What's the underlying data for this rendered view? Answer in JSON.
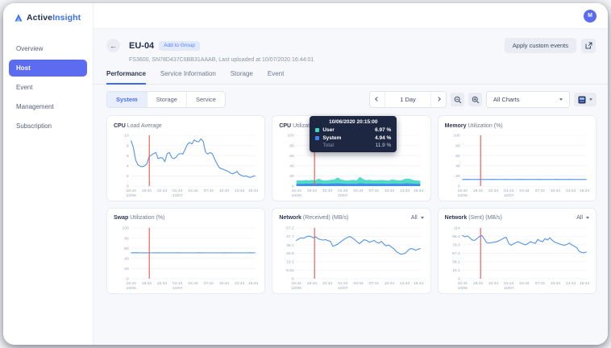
{
  "brand": {
    "name_a": "Active",
    "name_b": "Insight"
  },
  "topbar": {
    "avatar": "M"
  },
  "icons": {
    "back": "←"
  },
  "sidebar": {
    "items": [
      {
        "label": "Overview",
        "active": false
      },
      {
        "label": "Host",
        "active": true
      },
      {
        "label": "Event",
        "active": false
      },
      {
        "label": "Management",
        "active": false
      },
      {
        "label": "Subscription",
        "active": false
      }
    ]
  },
  "header": {
    "title": "EU-04",
    "chip": "Add to Group",
    "subtitle": "FS3600, SN78D437C6BB31AAAB, Last uploaded at 10/07/2020 16:44:01",
    "apply_button": "Apply custom events"
  },
  "tabs": [
    {
      "label": "Performance",
      "active": true
    },
    {
      "label": "Service Information",
      "active": false
    },
    {
      "label": "Storage",
      "active": false
    },
    {
      "label": "Event",
      "active": false
    }
  ],
  "subtabs": [
    {
      "label": "System",
      "active": true
    },
    {
      "label": "Storage",
      "active": false
    },
    {
      "label": "Service",
      "active": false
    }
  ],
  "controls": {
    "range": "1 Day",
    "charts_filter": "All Charts"
  },
  "colors": {
    "accent": "#4c6ef5",
    "sidebar_active": "#5b6cf0",
    "line_blue": "#4f92e8",
    "marker_red": "#ef5350",
    "teal": "#3ed6c0",
    "grid": "#edf0f5",
    "tooltip_bg": "#1d2742"
  },
  "tooltip": {
    "title": "10/06/2020 20:15:00",
    "rows": [
      {
        "label": "User",
        "value": "6.97 %",
        "color": "#3ed6c0"
      },
      {
        "label": "System",
        "value": "4.94 %",
        "color": "#3b82f6"
      },
      {
        "label": "Total",
        "value": "11.9 %",
        "color": null
      }
    ]
  },
  "chart_data": [
    {
      "type": "line",
      "title_strong": "CPU",
      "title_rest": "Load Average",
      "ylim": [
        0,
        10
      ],
      "yticks": [
        0,
        2,
        4,
        6,
        8,
        10
      ],
      "xticks": [
        [
          "16:44",
          "10/06"
        ],
        [
          "19:44"
        ],
        [
          "22:44"
        ],
        [
          "01:44",
          "10/07"
        ],
        [
          "04:44"
        ],
        [
          "07:44"
        ],
        [
          "10:44"
        ],
        [
          "13:44"
        ],
        [
          "16:44"
        ]
      ],
      "marker_x": 0.1465,
      "dropdown": null,
      "series": [
        {
          "name": "Load",
          "color": "#4f92e8",
          "values": [
            8.9,
            7.6,
            5.1,
            4.2,
            3.9,
            3.8,
            4.0,
            4.4,
            5.8,
            6.1,
            6.4,
            6.6,
            5.4,
            5.6,
            5.5,
            4.8,
            6.4,
            6.6,
            5.6,
            5.4,
            5.7,
            6.3,
            6.4,
            6.3,
            7.3,
            8.2,
            8.6,
            8.3,
            9.1,
            8.8,
            8.7,
            9.3,
            8.8,
            6.7,
            6.3,
            6.6,
            6.4,
            5.4,
            4.5,
            3.7,
            3.4,
            3.3,
            3.1,
            2.9,
            2.6,
            2.4,
            2.6,
            2.9,
            2.3,
            2.1,
            1.9,
            2.0,
            1.8,
            1.7,
            1.9,
            2.0
          ]
        }
      ]
    },
    {
      "type": "stacked_area",
      "title_strong": "CPU",
      "title_rest": "Utilization (%)",
      "ylim": [
        0,
        100
      ],
      "yticks": [
        0,
        20,
        40,
        60,
        80,
        100
      ],
      "xticks": [
        [
          "16:44",
          "10/06"
        ],
        [
          "19:44"
        ],
        [
          "22:44"
        ],
        [
          "01:44",
          "10/07"
        ],
        [
          "04:44"
        ],
        [
          "07:44"
        ],
        [
          "10:44"
        ],
        [
          "13:44"
        ],
        [
          "16:44"
        ]
      ],
      "marker_x": 0.1465,
      "dropdown": null,
      "series": [
        {
          "name": "User",
          "color": "#3ed6c0",
          "values": [
            6.5,
            7.0,
            6.6,
            7.1,
            6.8,
            7.3,
            7.0,
            9.5,
            7.2,
            6.6,
            7.1,
            7.6,
            8.1,
            11.5,
            8.0,
            7.0,
            6.6,
            7.1,
            7.3,
            6.9,
            12.5,
            8.8,
            7.1,
            7.6,
            7.0,
            6.9,
            7.1,
            7.3,
            7.0,
            6.6,
            7.9,
            7.4,
            7.0,
            6.9,
            8.8,
            9.6,
            8.7,
            7.1,
            6.6,
            6.3
          ]
        },
        {
          "name": "System",
          "color": "#3b82f6",
          "values": [
            4.3,
            4.6,
            4.4,
            4.7,
            4.5,
            4.8,
            4.6,
            5.2,
            4.7,
            4.4,
            4.6,
            4.9,
            5.1,
            5.6,
            5.0,
            4.7,
            4.4,
            4.6,
            4.7,
            4.5,
            5.7,
            5.1,
            4.6,
            4.9,
            4.6,
            4.5,
            4.6,
            4.7,
            4.6,
            4.4,
            5.0,
            4.8,
            4.6,
            4.5,
            5.1,
            5.3,
            5.0,
            4.6,
            4.4,
            4.2
          ]
        }
      ]
    },
    {
      "type": "line",
      "title_strong": "Memory",
      "title_rest": "Utilization (%)",
      "ylim": [
        0,
        100
      ],
      "yticks": [
        0,
        20,
        40,
        60,
        80,
        100
      ],
      "xticks": [
        [
          "16:44",
          "10/06"
        ],
        [
          "19:44"
        ],
        [
          "22:44"
        ],
        [
          "01:44",
          "10/07"
        ],
        [
          "04:44"
        ],
        [
          "07:44"
        ],
        [
          "10:44"
        ],
        [
          "13:44"
        ],
        [
          "16:44"
        ]
      ],
      "marker_x": 0.1465,
      "dropdown": null,
      "series": [
        {
          "name": "Memory",
          "color": "#4f92e8",
          "values": [
            13,
            13.1,
            12.9,
            13,
            13.2,
            13,
            12.9,
            13.1,
            13,
            13,
            13.1,
            12.9,
            13,
            13,
            13.1,
            13,
            12.9,
            13,
            13.1,
            13,
            13,
            12.9,
            13.1,
            13,
            13,
            13.1,
            13,
            12.9,
            13,
            13
          ]
        }
      ]
    },
    {
      "type": "line",
      "title_strong": "Swap",
      "title_rest": "Utilization (%)",
      "ylim": [
        0,
        100
      ],
      "yticks": [
        0,
        20,
        40,
        60,
        80,
        100
      ],
      "xticks": [
        [
          "16:44",
          "10/06"
        ],
        [
          "19:44"
        ],
        [
          "22:44"
        ],
        [
          "01:44",
          "10/07"
        ],
        [
          "04:44"
        ],
        [
          "07:44"
        ],
        [
          "10:44"
        ],
        [
          "13:44"
        ],
        [
          "16:44"
        ]
      ],
      "marker_x": 0.1465,
      "dropdown": null,
      "series": [
        {
          "name": "Swap",
          "color": "#4f92e8",
          "values": [
            51,
            51.2,
            51,
            50.8,
            51,
            51,
            51.1,
            51,
            50.9,
            51,
            51,
            51.1,
            51,
            51,
            50.9,
            51,
            51.1,
            51,
            51,
            51,
            50.9,
            51,
            51.1,
            51,
            51,
            50.9,
            51,
            51,
            51.1,
            51
          ]
        }
      ]
    },
    {
      "type": "line",
      "title_strong": "Network",
      "title_rest": "(Received) (MB/s)",
      "ylim": [
        0,
        57.2
      ],
      "yticks": [
        0,
        9.54,
        19.1,
        28.6,
        38.1,
        47.7,
        57.2
      ],
      "xticks": [
        [
          "16:44",
          "10/06"
        ],
        [
          "19:44"
        ],
        [
          "22:44"
        ],
        [
          "01:44",
          "10/07"
        ],
        [
          "04:44"
        ],
        [
          "07:44"
        ],
        [
          "10:44"
        ],
        [
          "13:44"
        ],
        [
          "16:44"
        ]
      ],
      "marker_x": 0.1465,
      "dropdown": "All",
      "series": [
        {
          "name": "Received",
          "color": "#4f92e8",
          "values": [
            43,
            45,
            46,
            45.5,
            47,
            48,
            47.5,
            46,
            47,
            45,
            44,
            43.5,
            44,
            43,
            42,
            36.5,
            37.5,
            39,
            41,
            43,
            45,
            46.5,
            47.5,
            46,
            44,
            41.5,
            39.5,
            42,
            44,
            43,
            41,
            42,
            43,
            41,
            40,
            42,
            39,
            37,
            38,
            36,
            34,
            31,
            29,
            27.5,
            28,
            29,
            32,
            34,
            33.5,
            32,
            33,
            34
          ]
        }
      ]
    },
    {
      "type": "line",
      "title_strong": "Network",
      "title_rest": "(Sent) (MB/s)",
      "ylim": [
        0,
        114
      ],
      "yticks": [
        0,
        19.1,
        38.1,
        57.2,
        76.3,
        95.4,
        114
      ],
      "xticks": [
        [
          "16:44",
          "10/06"
        ],
        [
          "19:44"
        ],
        [
          "22:44"
        ],
        [
          "01:44",
          "10/07"
        ],
        [
          "04:44"
        ],
        [
          "07:44"
        ],
        [
          "10:44"
        ],
        [
          "13:44"
        ],
        [
          "16:44"
        ]
      ],
      "marker_x": 0.1465,
      "dropdown": "All",
      "series": [
        {
          "name": "Sent",
          "color": "#4f92e8",
          "values": [
            97,
            94,
            96,
            92,
            87,
            86,
            90,
            95,
            97,
            89,
            81,
            80,
            81,
            82,
            83,
            85,
            88,
            91,
            93,
            80,
            75,
            78,
            81,
            83,
            80,
            78,
            76,
            79,
            83,
            81,
            79,
            88,
            85,
            83,
            90,
            87,
            92,
            86,
            82,
            80,
            78,
            76,
            75,
            77,
            80,
            76,
            73,
            70,
            62,
            59,
            58,
            60
          ]
        }
      ]
    }
  ]
}
